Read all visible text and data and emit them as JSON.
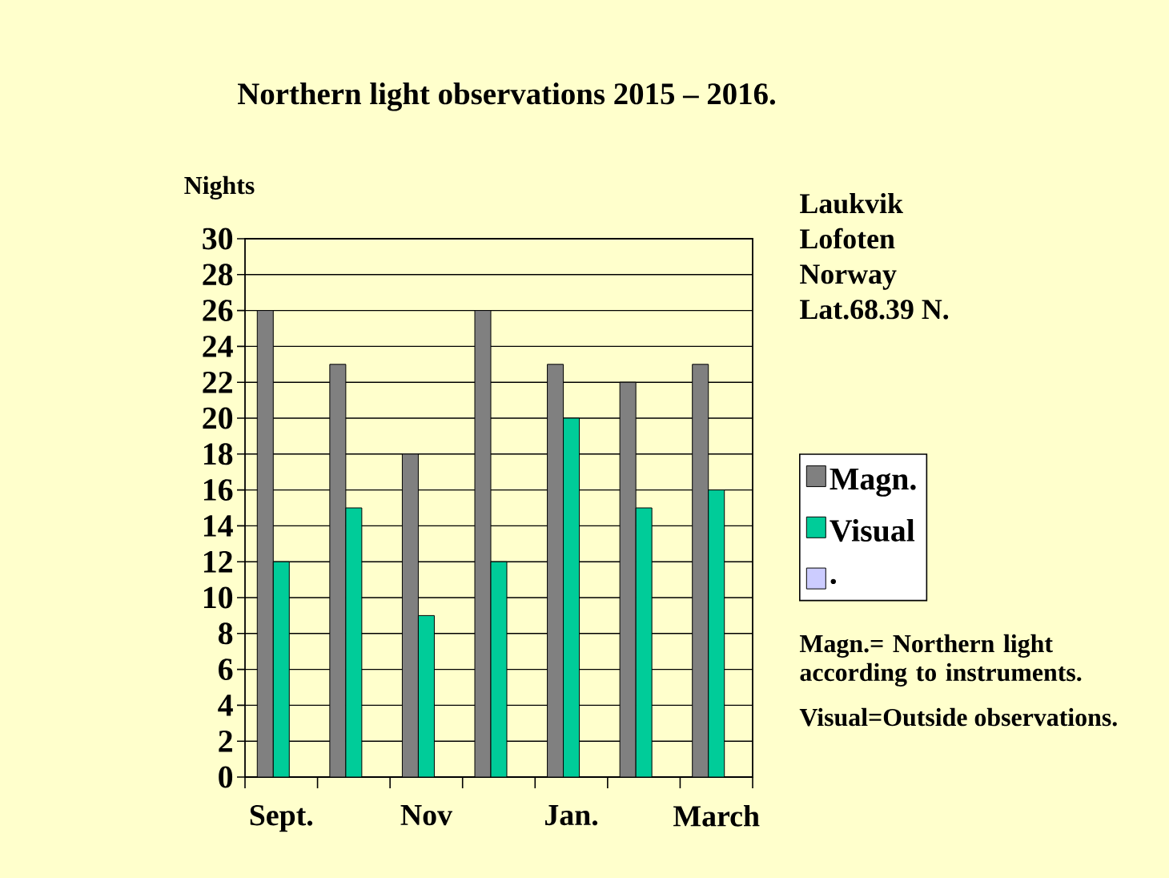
{
  "chart_data": {
    "type": "bar",
    "title": "Northern light observations 2015 – 2016.",
    "ylabel": "Nights",
    "categories": [
      "Sept.",
      null,
      "Nov",
      null,
      "Jan.",
      null,
      "March"
    ],
    "series": [
      {
        "name": "Magn.",
        "color": "#808080",
        "values": [
          26,
          23,
          18,
          26,
          23,
          22,
          23
        ]
      },
      {
        "name": "Visual",
        "color": "#00cc99",
        "values": [
          12,
          15,
          9,
          12,
          20,
          15,
          16
        ]
      },
      {
        "name": ".",
        "color": "#ccccff",
        "values": [
          0,
          0,
          0,
          0,
          0,
          0,
          0
        ]
      }
    ],
    "ylim": [
      0,
      30
    ],
    "yticks": [
      0,
      2,
      4,
      6,
      8,
      10,
      12,
      14,
      16,
      18,
      20,
      22,
      24,
      26,
      28,
      30
    ],
    "grid": "y",
    "legend": "right",
    "annotations": [
      "Laukvik",
      "Lofoten",
      "Norway",
      "Lat.68.39 N.",
      "Magn.= Northern light according to instruments.",
      "Visual=Outside observations."
    ]
  }
}
